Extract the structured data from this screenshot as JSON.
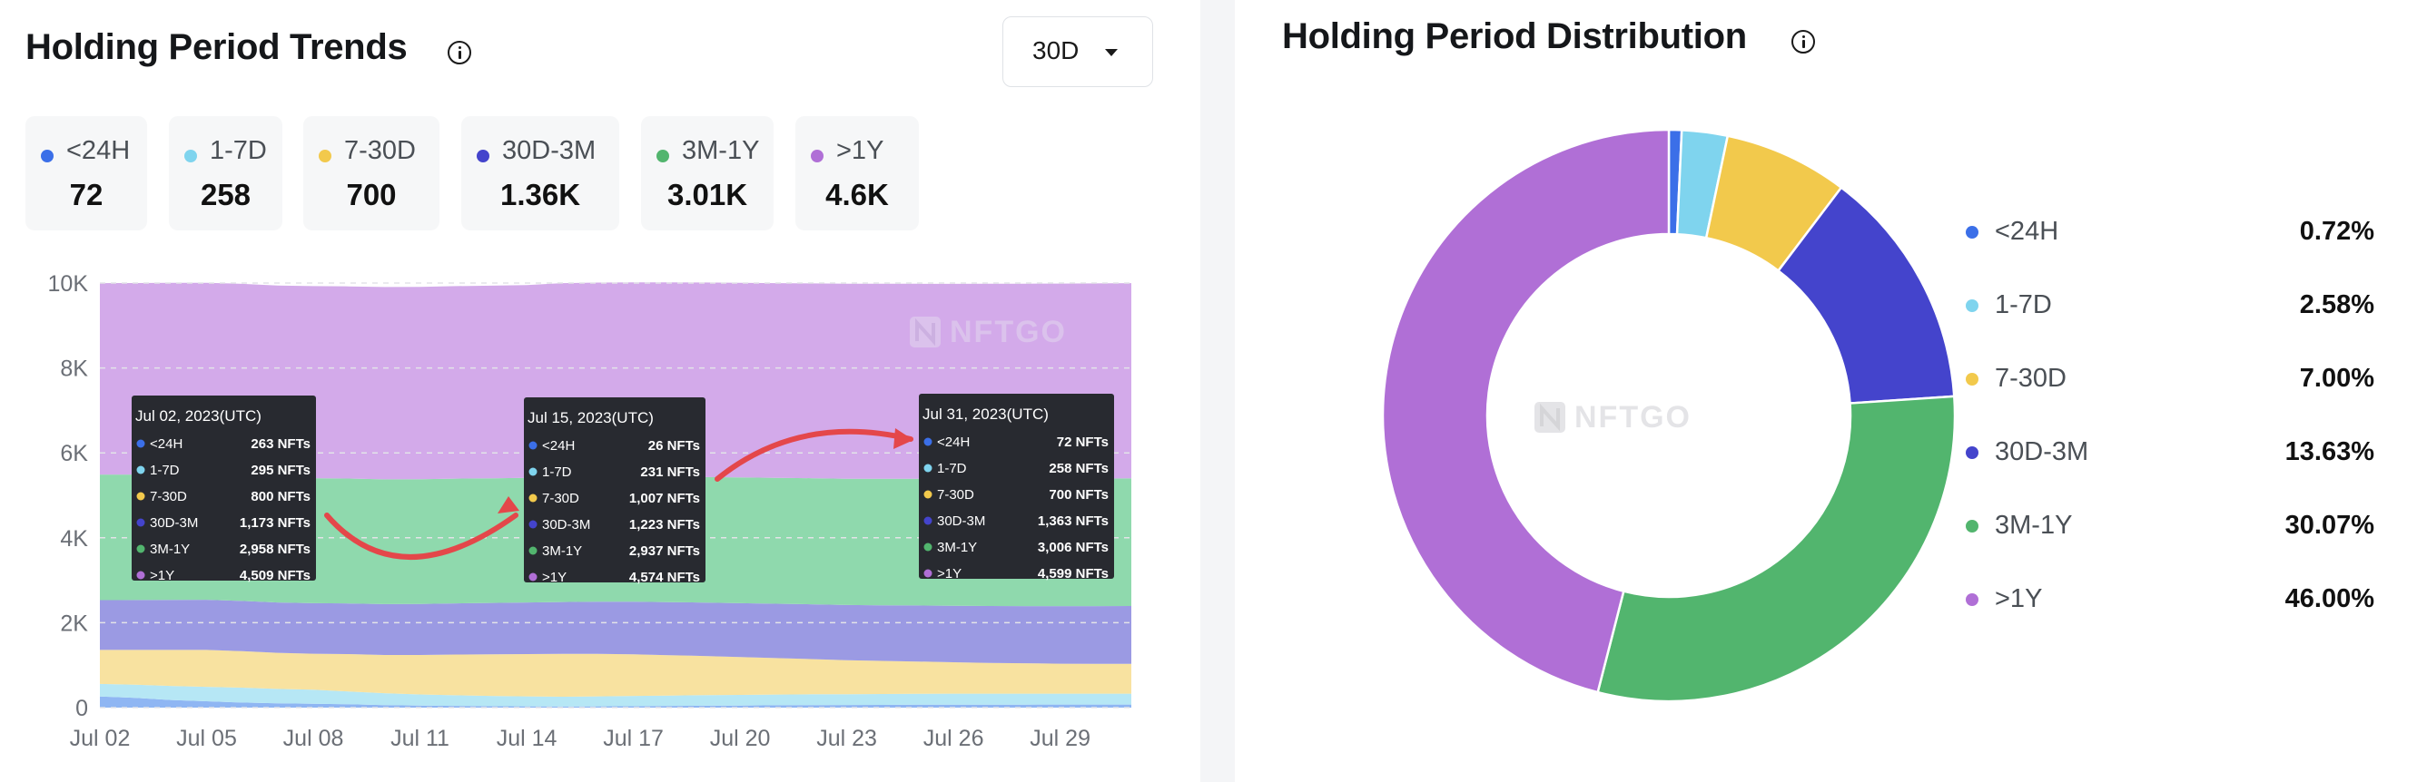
{
  "trends": {
    "title": "Holding Period Trends",
    "range_selector": {
      "selected": "30D"
    },
    "legend": [
      {
        "label": "<24H",
        "value": "72",
        "color": "#3b6fe8"
      },
      {
        "label": "1-7D",
        "value": "258",
        "color": "#7fd4ee"
      },
      {
        "label": "7-30D",
        "value": "700",
        "color": "#f2c94c"
      },
      {
        "label": "30D-3M",
        "value": "1.36K",
        "color": "#4444cc"
      },
      {
        "label": "3M-1Y",
        "value": "3.01K",
        "color": "#52b56e"
      },
      {
        "label": ">1Y",
        "value": "4.6K",
        "color": "#b06fd6"
      }
    ],
    "watermark": "NFTGO",
    "tooltips": [
      {
        "date": "Jul 02, 2023(UTC)",
        "rows": [
          {
            "label": "<24H",
            "value": "263 NFTs"
          },
          {
            "label": "1-7D",
            "value": "295 NFTs"
          },
          {
            "label": "7-30D",
            "value": "800 NFTs"
          },
          {
            "label": "30D-3M",
            "value": "1,173 NFTs"
          },
          {
            "label": "3M-1Y",
            "value": "2,958 NFTs"
          },
          {
            "label": ">1Y",
            "value": "4,509 NFTs"
          }
        ]
      },
      {
        "date": "Jul 15, 2023(UTC)",
        "rows": [
          {
            "label": "<24H",
            "value": "26 NFTs"
          },
          {
            "label": "1-7D",
            "value": "231 NFTs"
          },
          {
            "label": "7-30D",
            "value": "1,007 NFTs"
          },
          {
            "label": "30D-3M",
            "value": "1,223 NFTs"
          },
          {
            "label": "3M-1Y",
            "value": "2,937 NFTs"
          },
          {
            "label": ">1Y",
            "value": "4,574 NFTs"
          }
        ]
      },
      {
        "date": "Jul 31, 2023(UTC)",
        "rows": [
          {
            "label": "<24H",
            "value": "72 NFTs"
          },
          {
            "label": "1-7D",
            "value": "258 NFTs"
          },
          {
            "label": "7-30D",
            "value": "700 NFTs"
          },
          {
            "label": "30D-3M",
            "value": "1,363 NFTs"
          },
          {
            "label": "3M-1Y",
            "value": "3,006 NFTs"
          },
          {
            "label": ">1Y",
            "value": "4,599 NFTs"
          }
        ]
      }
    ]
  },
  "distribution": {
    "title": "Holding Period Distribution",
    "watermark": "NFTGO",
    "items": [
      {
        "label": "<24H",
        "pct": "0.72%",
        "color": "#3b6fe8"
      },
      {
        "label": "1-7D",
        "pct": "2.58%",
        "color": "#7fd4ee"
      },
      {
        "label": "7-30D",
        "pct": "7.00%",
        "color": "#f2c94c"
      },
      {
        "label": "30D-3M",
        "pct": "13.63%",
        "color": "#4444cc"
      },
      {
        "label": "3M-1Y",
        "pct": "30.07%",
        "color": "#52b56e"
      },
      {
        "label": ">1Y",
        "pct": "46.00%",
        "color": "#b06fd6"
      }
    ]
  },
  "chart_data": [
    {
      "type": "area",
      "stacked": true,
      "x": [
        "Jul 02",
        "Jul 03",
        "Jul 04",
        "Jul 05",
        "Jul 06",
        "Jul 07",
        "Jul 08",
        "Jul 09",
        "Jul 10",
        "Jul 11",
        "Jul 12",
        "Jul 13",
        "Jul 14",
        "Jul 15",
        "Jul 16",
        "Jul 17",
        "Jul 18",
        "Jul 19",
        "Jul 20",
        "Jul 21",
        "Jul 22",
        "Jul 23",
        "Jul 24",
        "Jul 25",
        "Jul 26",
        "Jul 27",
        "Jul 28",
        "Jul 29",
        "Jul 30",
        "Jul 31"
      ],
      "x_tick_labels": [
        "Jul 02",
        "Jul 05",
        "Jul 08",
        "Jul 11",
        "Jul 14",
        "Jul 17",
        "Jul 20",
        "Jul 23",
        "Jul 26",
        "Jul 29"
      ],
      "ylim": [
        0,
        10000
      ],
      "y_ticks": [
        0,
        2000,
        4000,
        6000,
        8000,
        10000
      ],
      "y_tick_labels": [
        "0",
        "2K",
        "4K",
        "6K",
        "8K",
        "10K"
      ],
      "grid": true,
      "series": [
        {
          "name": "<24H",
          "color": "#3b6fe8",
          "values": [
            263,
            230,
            180,
            150,
            120,
            100,
            90,
            80,
            60,
            50,
            40,
            35,
            30,
            26,
            30,
            35,
            40,
            45,
            50,
            55,
            60,
            62,
            65,
            68,
            70,
            70,
            71,
            72,
            72,
            72
          ]
        },
        {
          "name": "1-7D",
          "color": "#7fd4ee",
          "values": [
            295,
            310,
            330,
            340,
            350,
            340,
            330,
            300,
            280,
            260,
            250,
            240,
            235,
            231,
            235,
            240,
            245,
            250,
            250,
            252,
            254,
            255,
            256,
            257,
            258,
            258,
            258,
            258,
            258,
            258
          ]
        },
        {
          "name": "7-30D",
          "color": "#f2c94c",
          "values": [
            800,
            820,
            850,
            870,
            860,
            850,
            850,
            880,
            900,
            930,
            960,
            980,
            995,
            1007,
            1000,
            980,
            950,
            920,
            890,
            860,
            830,
            800,
            780,
            760,
            740,
            725,
            715,
            705,
            700,
            700
          ]
        },
        {
          "name": "30D-3M",
          "color": "#4444cc",
          "values": [
            1173,
            1175,
            1178,
            1180,
            1183,
            1186,
            1190,
            1193,
            1197,
            1200,
            1205,
            1210,
            1216,
            1223,
            1230,
            1240,
            1250,
            1260,
            1270,
            1280,
            1290,
            1300,
            1310,
            1320,
            1330,
            1340,
            1348,
            1355,
            1360,
            1363
          ]
        },
        {
          "name": "3M-1Y",
          "color": "#52b56e",
          "values": [
            2958,
            2955,
            2952,
            2950,
            2948,
            2946,
            2944,
            2942,
            2940,
            2939,
            2938,
            2937,
            2937,
            2937,
            2940,
            2945,
            2950,
            2955,
            2960,
            2965,
            2970,
            2975,
            2980,
            2985,
            2990,
            2995,
            2998,
            3002,
            3004,
            3006
          ]
        },
        {
          "name": ">1Y",
          "color": "#b06fd6",
          "values": [
            4509,
            4511,
            4514,
            4516,
            4519,
            4521,
            4524,
            4526,
            4529,
            4531,
            4534,
            4536,
            4539,
            4574,
            4576,
            4578,
            4580,
            4582,
            4584,
            4586,
            4588,
            4590,
            4591,
            4592,
            4593,
            4594,
            4595,
            4596,
            4597,
            4599
          ]
        }
      ]
    },
    {
      "type": "pie",
      "donut": true,
      "categories": [
        "<24H",
        "1-7D",
        "7-30D",
        "30D-3M",
        "3M-1Y",
        ">1Y"
      ],
      "values": [
        0.72,
        2.58,
        7.0,
        13.63,
        30.07,
        46.0
      ]
    }
  ]
}
